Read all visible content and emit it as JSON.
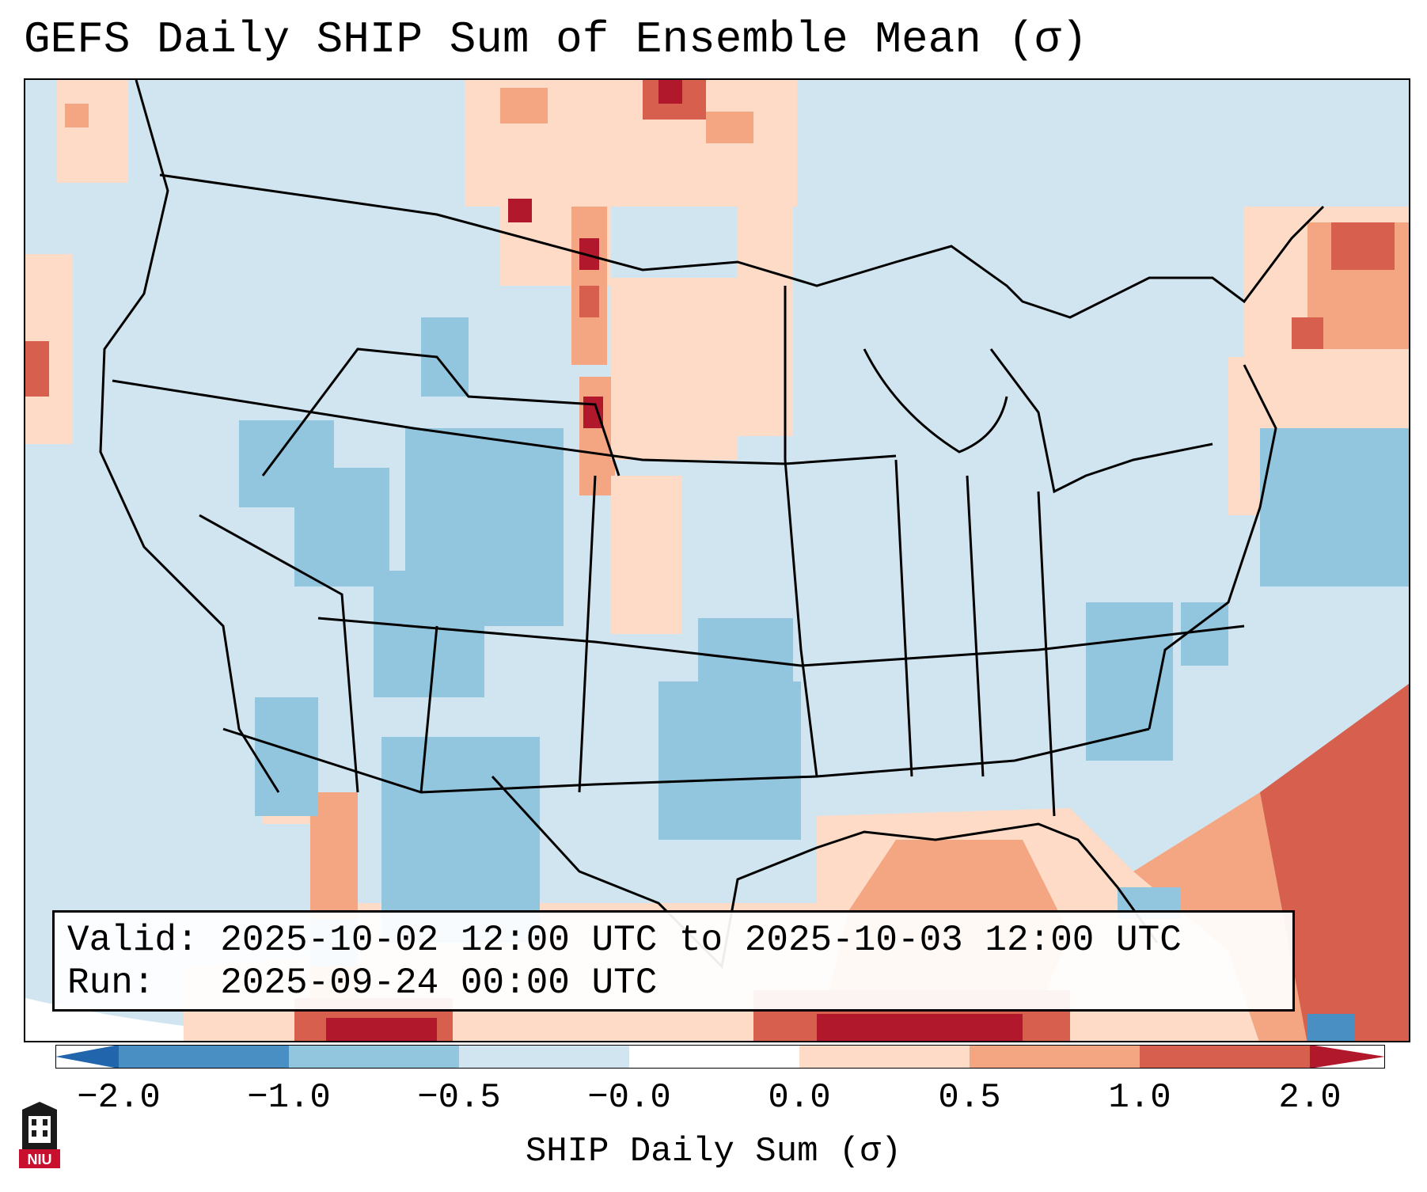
{
  "title": "GEFS Daily SHIP Sum of Ensemble Mean (σ)",
  "valid_line": "Valid: 2025-10-02 12:00 UTC to 2025-10-03 12:00 UTC",
  "run_line": "Run:   2025-09-24 00:00 UTC",
  "colorbar": {
    "label": "SHIP Daily Sum (σ)",
    "ticks": [
      "−2.0",
      "−1.0",
      "−0.5",
      "−0.0",
      "0.0",
      "0.5",
      "1.0",
      "2.0"
    ],
    "colors": [
      "#4a8fc4",
      "#92c5de",
      "#d1e5f0",
      "#fddbc7",
      "#f4a582",
      "#d6604d",
      "#b2182b"
    ],
    "extend": "both"
  },
  "logo_text": "NIU",
  "map": {
    "land_cold_areas": [
      "Great Basin",
      "Colorado",
      "Texas/Oklahoma",
      "South Carolina"
    ],
    "warm_areas": [
      "High Plains",
      "Gulf of Mexico",
      "Northeast",
      "Western Atlantic"
    ]
  }
}
